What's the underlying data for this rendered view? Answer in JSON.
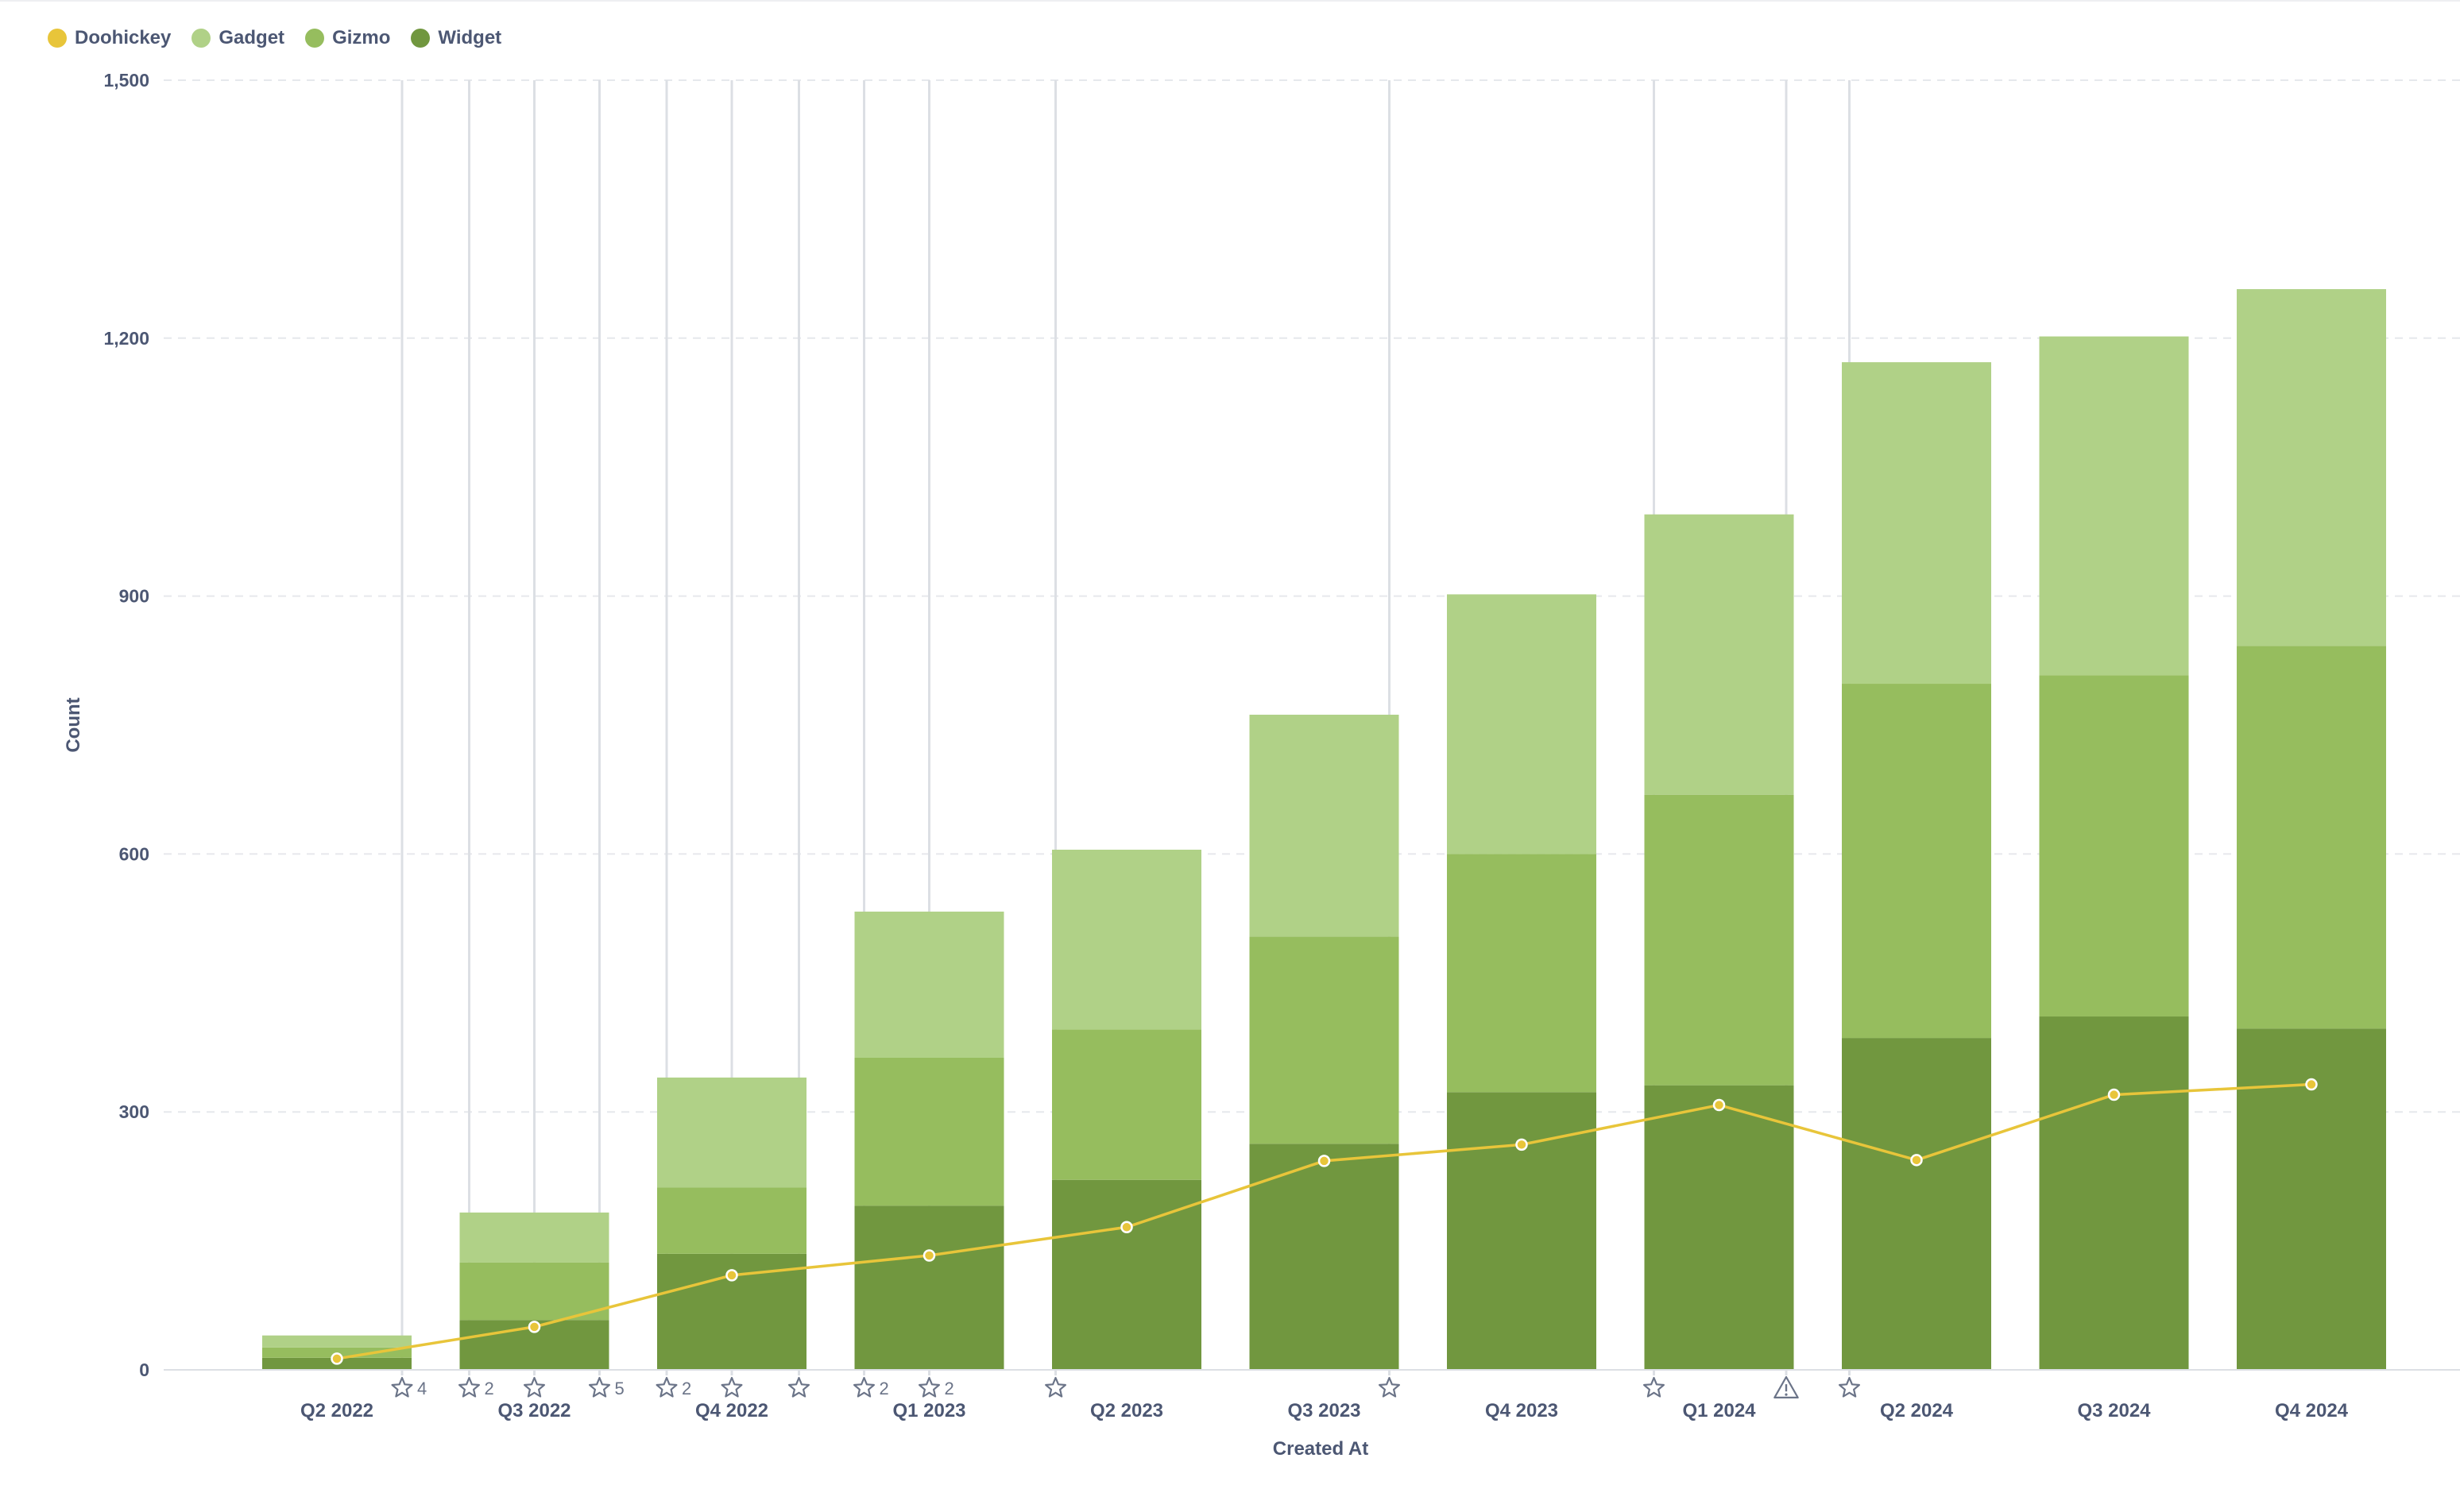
{
  "chart_data": {
    "type": "bar",
    "stacked": true,
    "categories": [
      "Q2 2022",
      "Q3 2022",
      "Q4 2022",
      "Q1 2023",
      "Q2 2023",
      "Q3 2023",
      "Q4 2023",
      "Q1 2024",
      "Q2 2024",
      "Q3 2024",
      "Q4 2024"
    ],
    "series": [
      {
        "name": "Widget",
        "type": "bar",
        "color": "#71973f",
        "values": [
          14,
          58,
          135,
          191,
          221,
          263,
          323,
          331,
          386,
          411,
          397
        ]
      },
      {
        "name": "Gizmo",
        "type": "bar",
        "color": "#96bd5e",
        "values": [
          12,
          67,
          77,
          172,
          175,
          241,
          277,
          338,
          412,
          397,
          445
        ]
      },
      {
        "name": "Gadget",
        "type": "bar",
        "color": "#b0d187",
        "values": [
          14,
          58,
          128,
          170,
          209,
          258,
          302,
          326,
          374,
          394,
          415
        ]
      },
      {
        "name": "Doohickey",
        "type": "line",
        "color": "#e8c53a",
        "values": [
          13,
          50,
          110,
          133,
          166,
          243,
          262,
          308,
          244,
          320,
          332
        ]
      }
    ],
    "legend_order": [
      "Doohickey",
      "Gadget",
      "Gizmo",
      "Widget"
    ],
    "legend_position": "top-left",
    "xlabel": "Created At",
    "ylabel": "Count",
    "ylim": [
      0,
      1500
    ],
    "yticks": [
      0,
      300,
      600,
      900,
      1200,
      1500
    ],
    "ytick_labels": [
      "0",
      "300",
      "600",
      "900",
      "1,200",
      "1,500"
    ],
    "grid": "horizontal-dashed",
    "event_markers": [
      {
        "at": 0.33,
        "icon": "star",
        "count": "4"
      },
      {
        "at": 0.67,
        "icon": "star",
        "count": "2"
      },
      {
        "at": 1.0,
        "icon": "star",
        "count": ""
      },
      {
        "at": 1.33,
        "icon": "star",
        "count": "5"
      },
      {
        "at": 1.67,
        "icon": "star",
        "count": "2"
      },
      {
        "at": 2.0,
        "icon": "star",
        "count": ""
      },
      {
        "at": 2.34,
        "icon": "star",
        "count": ""
      },
      {
        "at": 2.67,
        "icon": "star",
        "count": "2"
      },
      {
        "at": 3.0,
        "icon": "star",
        "count": "2"
      },
      {
        "at": 3.64,
        "icon": "star",
        "count": ""
      },
      {
        "at": 5.33,
        "icon": "star",
        "count": ""
      },
      {
        "at": 6.67,
        "icon": "star",
        "count": ""
      },
      {
        "at": 7.34,
        "icon": "warning",
        "count": ""
      },
      {
        "at": 7.66,
        "icon": "star",
        "count": ""
      }
    ]
  }
}
